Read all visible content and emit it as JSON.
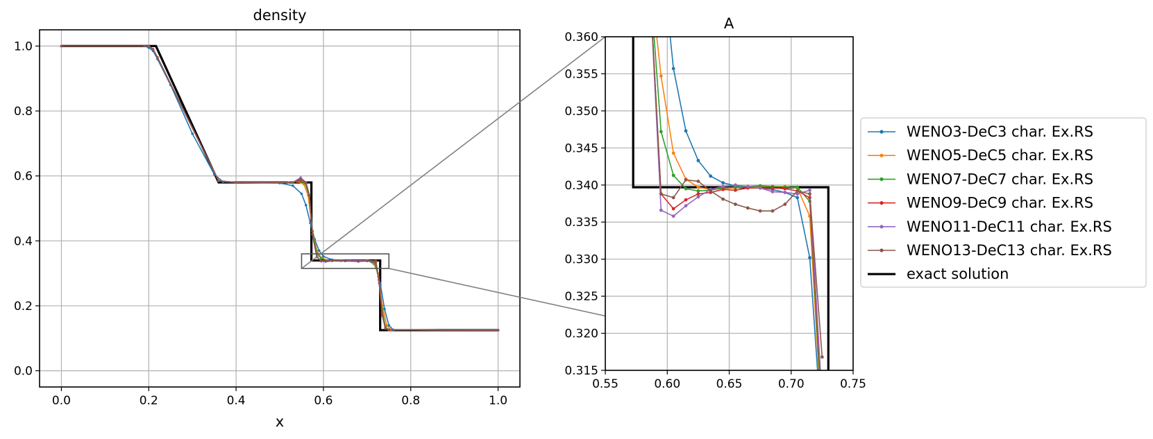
{
  "chart_data": [
    {
      "type": "line",
      "title": "density",
      "xlabel": "x",
      "ylabel": "",
      "xlim": [
        -0.05,
        1.05
      ],
      "ylim": [
        -0.05,
        1.05
      ],
      "xticks": [
        0.0,
        0.2,
        0.4,
        0.6,
        0.8,
        1.0
      ],
      "xtick_labels": [
        "0.0",
        "0.2",
        "0.4",
        "0.6",
        "0.8",
        "1.0"
      ],
      "yticks": [
        0.0,
        0.2,
        0.4,
        0.6,
        0.8,
        1.0
      ],
      "ytick_labels": [
        "0.0",
        "0.2",
        "0.4",
        "0.6",
        "0.8",
        "1.0"
      ],
      "grid": true,
      "inset_region": {
        "x": [
          0.55,
          0.75
        ],
        "y": [
          0.315,
          0.36
        ]
      },
      "exact": {
        "name": "exact solution",
        "x": [
          0.0,
          0.2165,
          0.36,
          0.5725,
          0.5725,
          0.73,
          0.73,
          1.0
        ],
        "y": [
          1.0,
          1.0,
          0.58,
          0.58,
          0.3397,
          0.3397,
          0.125,
          0.125
        ]
      },
      "series": [
        {
          "name": "WENO3-DeC3 char. Ex.RS",
          "x": [
            0.0,
            0.19,
            0.2,
            0.21,
            0.22,
            0.25,
            0.3,
            0.35,
            0.37,
            0.4,
            0.5,
            0.53,
            0.55,
            0.56,
            0.57,
            0.58,
            0.59,
            0.6,
            0.62,
            0.66,
            0.7,
            0.71,
            0.72,
            0.73,
            0.74,
            0.75,
            0.76,
            1.0
          ],
          "y": [
            1.0,
            1.0,
            0.995,
            0.985,
            0.96,
            0.88,
            0.73,
            0.605,
            0.582,
            0.58,
            0.578,
            0.57,
            0.545,
            0.51,
            0.455,
            0.405,
            0.37,
            0.352,
            0.342,
            0.34,
            0.339,
            0.335,
            0.32,
            0.27,
            0.19,
            0.14,
            0.126,
            0.125
          ]
        },
        {
          "name": "WENO5-DeC5 char. Ex.RS",
          "x": [
            0.0,
            0.2,
            0.21,
            0.22,
            0.36,
            0.4,
            0.52,
            0.54,
            0.555,
            0.565,
            0.575,
            0.585,
            0.595,
            0.61,
            0.64,
            0.7,
            0.715,
            0.725,
            0.735,
            0.745,
            0.755,
            1.0
          ],
          "y": [
            1.0,
            1.0,
            0.99,
            0.965,
            0.585,
            0.58,
            0.58,
            0.583,
            0.575,
            0.54,
            0.43,
            0.37,
            0.348,
            0.34,
            0.339,
            0.339,
            0.333,
            0.3,
            0.2,
            0.14,
            0.126,
            0.125
          ]
        },
        {
          "name": "WENO7-DeC7 char. Ex.RS",
          "x": [
            0.0,
            0.2,
            0.21,
            0.22,
            0.36,
            0.4,
            0.53,
            0.545,
            0.558,
            0.567,
            0.575,
            0.585,
            0.595,
            0.61,
            0.64,
            0.7,
            0.718,
            0.726,
            0.734,
            0.742,
            0.75,
            1.0
          ],
          "y": [
            1.0,
            1.0,
            0.99,
            0.965,
            0.585,
            0.58,
            0.58,
            0.585,
            0.578,
            0.54,
            0.43,
            0.36,
            0.346,
            0.339,
            0.339,
            0.339,
            0.332,
            0.29,
            0.19,
            0.135,
            0.126,
            0.125
          ]
        },
        {
          "name": "WENO9-DeC9 char. Ex.RS",
          "x": [
            0.0,
            0.2,
            0.21,
            0.22,
            0.36,
            0.4,
            0.53,
            0.55,
            0.56,
            0.568,
            0.575,
            0.585,
            0.595,
            0.61,
            0.64,
            0.7,
            0.72,
            0.727,
            0.734,
            0.742,
            0.75,
            1.0
          ],
          "y": [
            1.0,
            1.0,
            0.99,
            0.965,
            0.585,
            0.58,
            0.58,
            0.588,
            0.578,
            0.54,
            0.42,
            0.35,
            0.339,
            0.338,
            0.339,
            0.339,
            0.335,
            0.28,
            0.18,
            0.13,
            0.126,
            0.125
          ]
        },
        {
          "name": "WENO11-DeC11 char. Ex.RS",
          "x": [
            0.0,
            0.2,
            0.21,
            0.22,
            0.36,
            0.4,
            0.53,
            0.548,
            0.56,
            0.568,
            0.575,
            0.585,
            0.595,
            0.605,
            0.62,
            0.64,
            0.7,
            0.72,
            0.728,
            0.735,
            0.742,
            0.75,
            1.0
          ],
          "y": [
            1.0,
            1.0,
            0.99,
            0.965,
            0.585,
            0.58,
            0.58,
            0.595,
            0.58,
            0.54,
            0.42,
            0.35,
            0.337,
            0.336,
            0.338,
            0.34,
            0.34,
            0.338,
            0.27,
            0.17,
            0.13,
            0.126,
            0.125
          ]
        },
        {
          "name": "WENO13-DeC13 char. Ex.RS",
          "x": [
            0.0,
            0.2,
            0.21,
            0.22,
            0.36,
            0.4,
            0.53,
            0.547,
            0.56,
            0.568,
            0.575,
            0.585,
            0.595,
            0.605,
            0.62,
            0.65,
            0.68,
            0.7,
            0.72,
            0.728,
            0.735,
            0.742,
            0.75,
            1.0
          ],
          "y": [
            1.0,
            1.0,
            0.99,
            0.965,
            0.585,
            0.58,
            0.58,
            0.59,
            0.58,
            0.54,
            0.42,
            0.35,
            0.339,
            0.338,
            0.34,
            0.338,
            0.3365,
            0.338,
            0.338,
            0.27,
            0.17,
            0.13,
            0.126,
            0.125
          ]
        }
      ]
    },
    {
      "type": "line",
      "title": "A",
      "xlabel": "",
      "ylabel": "",
      "xlim": [
        0.55,
        0.75
      ],
      "ylim": [
        0.315,
        0.36
      ],
      "xticks": [
        0.55,
        0.6,
        0.65,
        0.7,
        0.75
      ],
      "xtick_labels": [
        "0.55",
        "0.60",
        "0.65",
        "0.70",
        "0.75"
      ],
      "yticks": [
        0.315,
        0.32,
        0.325,
        0.33,
        0.335,
        0.34,
        0.345,
        0.35,
        0.355,
        0.36
      ],
      "ytick_labels": [
        "0.315",
        "0.320",
        "0.325",
        "0.330",
        "0.335",
        "0.340",
        "0.345",
        "0.350",
        "0.355",
        "0.360"
      ],
      "grid": true,
      "exact": {
        "name": "exact solution",
        "x": [
          0.5725,
          0.5725,
          0.73,
          0.73
        ],
        "y": [
          0.37,
          0.3397,
          0.3397,
          0.31
        ]
      },
      "series": [
        {
          "name": "WENO3-DeC3 char. Ex.RS",
          "x": [
            0.595,
            0.605,
            0.615,
            0.625,
            0.635,
            0.645,
            0.655,
            0.665,
            0.675,
            0.685,
            0.695,
            0.705,
            0.715,
            0.725
          ],
          "y": [
            0.372,
            0.3557,
            0.3473,
            0.3433,
            0.3412,
            0.3403,
            0.3399,
            0.3397,
            0.3396,
            0.3394,
            0.339,
            0.3383,
            0.3302,
            0.306
          ]
        },
        {
          "name": "WENO5-DeC5 char. Ex.RS",
          "x": [
            0.585,
            0.595,
            0.605,
            0.615,
            0.625,
            0.635,
            0.645,
            0.655,
            0.665,
            0.675,
            0.685,
            0.695,
            0.705,
            0.715,
            0.725
          ],
          "y": [
            0.37,
            0.3547,
            0.3443,
            0.3408,
            0.3397,
            0.3394,
            0.3395,
            0.3396,
            0.3398,
            0.3398,
            0.3398,
            0.3398,
            0.3396,
            0.3358,
            0.307
          ]
        },
        {
          "name": "WENO7-DeC7 char. Ex.RS",
          "x": [
            0.585,
            0.595,
            0.605,
            0.615,
            0.625,
            0.635,
            0.645,
            0.655,
            0.665,
            0.675,
            0.685,
            0.695,
            0.705,
            0.715,
            0.725
          ],
          "y": [
            0.37,
            0.3472,
            0.3413,
            0.3395,
            0.3392,
            0.3393,
            0.3396,
            0.3397,
            0.3398,
            0.3399,
            0.3398,
            0.3397,
            0.3397,
            0.3378,
            0.308
          ]
        },
        {
          "name": "WENO9-DeC9 char. Ex.RS",
          "x": [
            0.585,
            0.595,
            0.605,
            0.615,
            0.625,
            0.635,
            0.645,
            0.655,
            0.665,
            0.675,
            0.685,
            0.695,
            0.705,
            0.715,
            0.725
          ],
          "y": [
            0.37,
            0.3388,
            0.3368,
            0.338,
            0.3388,
            0.339,
            0.3394,
            0.3393,
            0.3396,
            0.3396,
            0.3396,
            0.3395,
            0.3392,
            0.3383,
            0.31
          ]
        },
        {
          "name": "WENO11-DeC11 char. Ex.RS",
          "x": [
            0.585,
            0.595,
            0.605,
            0.615,
            0.625,
            0.635,
            0.645,
            0.655,
            0.665,
            0.675,
            0.685,
            0.695,
            0.705,
            0.715,
            0.725
          ],
          "y": [
            0.37,
            0.3366,
            0.3358,
            0.3372,
            0.3384,
            0.3394,
            0.3398,
            0.34,
            0.3398,
            0.3396,
            0.3391,
            0.339,
            0.3388,
            0.3393,
            0.311
          ]
        },
        {
          "name": "WENO13-DeC13 char. Ex.RS",
          "x": [
            0.585,
            0.595,
            0.605,
            0.615,
            0.625,
            0.635,
            0.645,
            0.655,
            0.665,
            0.675,
            0.685,
            0.695,
            0.705,
            0.715,
            0.725
          ],
          "y": [
            0.37,
            0.3388,
            0.3383,
            0.3407,
            0.3405,
            0.3392,
            0.3381,
            0.3374,
            0.3369,
            0.3365,
            0.3365,
            0.3374,
            0.3392,
            0.3388,
            0.3168
          ]
        }
      ]
    }
  ],
  "legend": {
    "position": "right",
    "entries": [
      {
        "label": "WENO3-DeC3 char. Ex.RS",
        "color": "#1f77b4"
      },
      {
        "label": "WENO5-DeC5 char. Ex.RS",
        "color": "#ff7f0e"
      },
      {
        "label": "WENO7-DeC7 char. Ex.RS",
        "color": "#2ca02c"
      },
      {
        "label": "WENO9-DeC9 char. Ex.RS",
        "color": "#d62728"
      },
      {
        "label": "WENO11-DeC11 char. Ex.RS",
        "color": "#9467bd"
      },
      {
        "label": "WENO13-DeC13 char. Ex.RS",
        "color": "#8c564b"
      },
      {
        "label": "exact solution",
        "color": "#000000"
      }
    ]
  },
  "colors": {
    "series": [
      "#1f77b4",
      "#ff7f0e",
      "#2ca02c",
      "#d62728",
      "#9467bd",
      "#8c564b"
    ],
    "exact": "#000000",
    "grid": "#b0b0b0",
    "inset_connector": "#808080"
  }
}
